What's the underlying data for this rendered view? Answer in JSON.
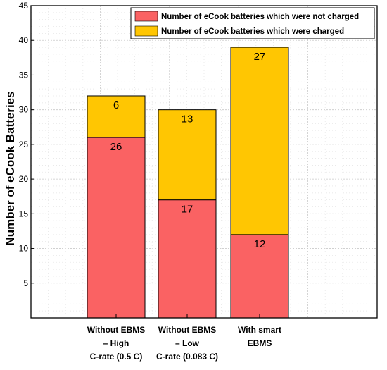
{
  "chart_data": {
    "type": "bar",
    "stacked": true,
    "categories": [
      [
        "Without EBMS",
        "– High",
        "C-rate (0.5 C)"
      ],
      [
        "Without EBMS",
        "– Low",
        "C-rate (0.083 C)"
      ],
      [
        "With smart",
        "EBMS"
      ]
    ],
    "series": [
      {
        "name": "Number of eCook batteries which were not charged",
        "color": "#fa6263",
        "values": [
          26,
          17,
          12
        ]
      },
      {
        "name": "Number of eCook batteries which were charged",
        "color": "#ffc602",
        "values": [
          6,
          13,
          27
        ]
      }
    ],
    "data_labels": [
      [
        "26",
        "17",
        "12"
      ],
      [
        "6",
        "13",
        "27"
      ]
    ],
    "ylabel": "Number of eCook Batteries",
    "ylim": [
      0,
      45
    ],
    "yticks": [
      5,
      10,
      15,
      20,
      25,
      30,
      35,
      40,
      45
    ],
    "grid": true,
    "legend_position": "top-right"
  }
}
